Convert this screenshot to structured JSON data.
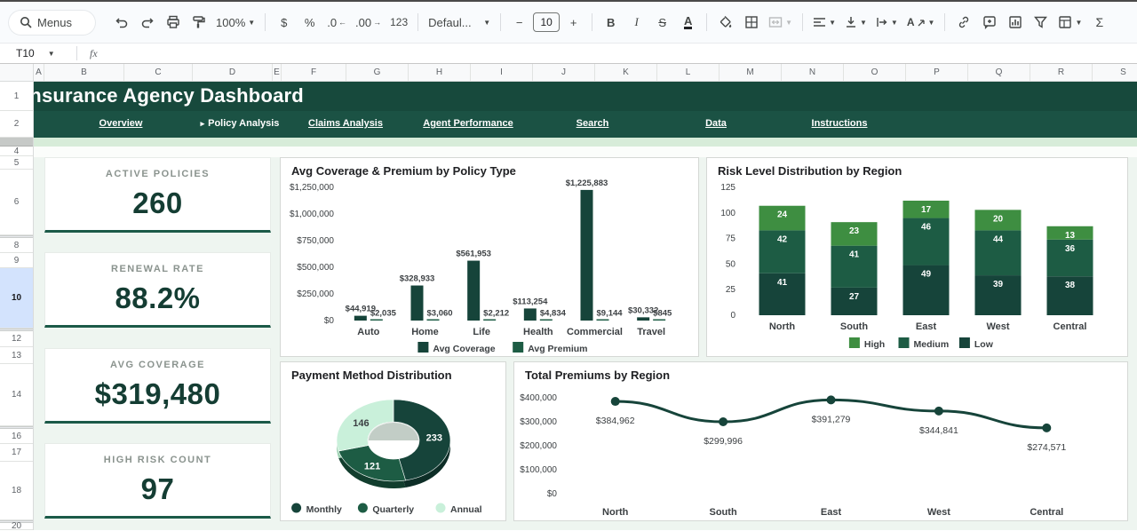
{
  "toolbar": {
    "menus_label": "Menus",
    "zoom_value": "100%",
    "currency_label": "$",
    "percent_label": "%",
    "decrease_decimal_label": ".0",
    "increase_decimal_label": ".00",
    "more_formats_label": "123",
    "font_family_value": "Defaul...",
    "decrease_font_label": "−",
    "font_size_value": "10",
    "increase_font_label": "+",
    "bold_label": "B",
    "italic_label": "I",
    "strikethrough_label": "S",
    "text_color_label": "A",
    "rotate_label": "A",
    "functions_label": "Σ"
  },
  "formula_bar": {
    "cell_ref": "T10",
    "fx_label": "fx"
  },
  "grid": {
    "columns": [
      "A",
      "B",
      "C",
      "D",
      "E",
      "F",
      "G",
      "H",
      "I",
      "J",
      "K",
      "L",
      "M",
      "N",
      "O",
      "P",
      "Q",
      "R",
      "S"
    ],
    "rows": [
      "1",
      "2",
      "4",
      "5",
      "6",
      "8",
      "9",
      "10",
      "12",
      "13",
      "14",
      "16",
      "17",
      "18",
      "20"
    ],
    "selected_row": "10"
  },
  "banner": {
    "title": "Insurance Agency Dashboard",
    "nav": [
      {
        "label": "Overview",
        "active": false
      },
      {
        "label": "Policy Analysis",
        "active": true
      },
      {
        "label": "Claims Analysis",
        "active": false
      },
      {
        "label": "Agent Performance",
        "active": false
      },
      {
        "label": "Search",
        "active": false
      },
      {
        "label": "Data",
        "active": false
      },
      {
        "label": "Instructions",
        "active": false
      }
    ]
  },
  "kpis": [
    {
      "label": "ACTIVE POLICIES",
      "value": "260"
    },
    {
      "label": "RENEWAL RATE",
      "value": "88.2%"
    },
    {
      "label": "AVG COVERAGE",
      "value": "$319,480"
    },
    {
      "label": "HIGH RISK COUNT",
      "value": "97"
    }
  ],
  "chart_data": [
    {
      "type": "bar",
      "title": "Avg Coverage & Premium by Policy Type",
      "categories": [
        "Auto",
        "Home",
        "Life",
        "Health",
        "Commercial",
        "Travel"
      ],
      "series": [
        {
          "name": "Avg Coverage",
          "values": [
            44919,
            328933,
            561953,
            113254,
            1225883,
            30332
          ],
          "labels": [
            "$44,919",
            "$328,933",
            "$561,953",
            "$113,254",
            "$1,225,883",
            "$30,332"
          ]
        },
        {
          "name": "Avg Premium",
          "values": [
            2035,
            3060,
            2212,
            4834,
            9144,
            845
          ],
          "labels": [
            "$2,035",
            "$3,060",
            "$2,212",
            "$4,834",
            "$9,144",
            "$845"
          ]
        }
      ],
      "ylim": [
        0,
        1250000
      ],
      "yticks": [
        "$1,250,000",
        "$1,000,000",
        "$750,000",
        "$500,000",
        "$250,000",
        "$0"
      ],
      "legend_position": "bottom",
      "grid": false
    },
    {
      "type": "bar",
      "stacked": true,
      "title": "Risk Level Distribution by Region",
      "categories": [
        "North",
        "South",
        "East",
        "West",
        "Central"
      ],
      "series": [
        {
          "name": "High",
          "values": [
            24,
            23,
            17,
            20,
            13
          ]
        },
        {
          "name": "Medium",
          "values": [
            42,
            41,
            46,
            44,
            36
          ]
        },
        {
          "name": "Low",
          "values": [
            41,
            27,
            49,
            39,
            38
          ]
        }
      ],
      "ylim": [
        0,
        125
      ],
      "yticks": [
        "125",
        "100",
        "75",
        "50",
        "25",
        "0"
      ],
      "legend_position": "bottom",
      "grid": false
    },
    {
      "type": "pie",
      "title": "Payment Method Distribution",
      "categories": [
        "Monthly",
        "Quarterly",
        "Annual"
      ],
      "values": [
        233,
        121,
        146
      ],
      "legend_position": "bottom"
    },
    {
      "type": "line",
      "title": "Total Premiums by Region",
      "categories": [
        "North",
        "South",
        "East",
        "West",
        "Central"
      ],
      "values": [
        384962,
        299996,
        391279,
        344841,
        274571
      ],
      "labels": [
        "$384,962",
        "$299,996",
        "$391,279",
        "$344,841",
        "$274,571"
      ],
      "ylim": [
        0,
        400000
      ],
      "yticks": [
        "$400,000",
        "$300,000",
        "$200,000",
        "$100,000",
        "$0"
      ],
      "grid": false
    }
  ],
  "colors": {
    "banner_green": "#17493c",
    "nav_green": "#1b5244",
    "strip_green": "#d7ecd9",
    "dark_teal": "#16443a",
    "medium_green": "#1d5c44",
    "bright_green": "#3e8e41",
    "pale_mint": "#c9f0da",
    "kpi_value": "#143d33",
    "selected_row_bg": "#d3e3fd",
    "label_text": "#3c4043"
  }
}
